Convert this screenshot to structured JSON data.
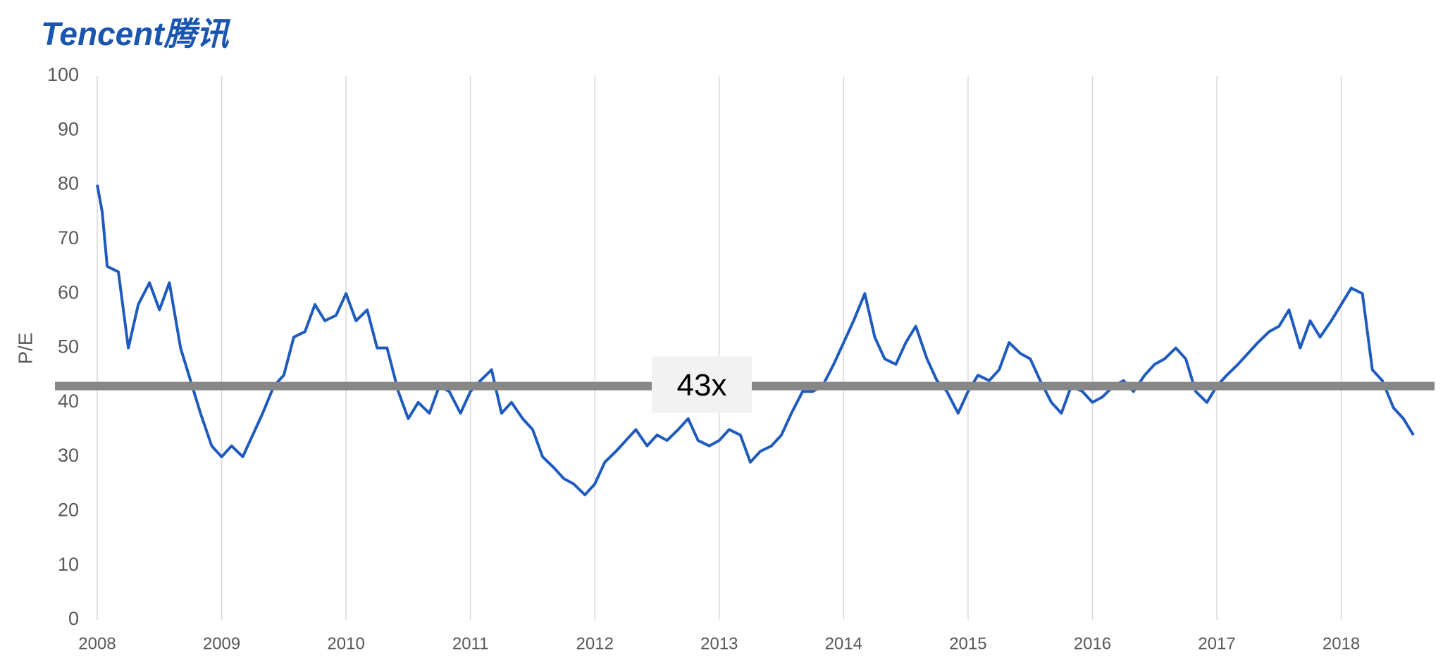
{
  "chart_data": {
    "type": "line",
    "logo": "Tencent腾讯",
    "y_label": "P/E",
    "x": [
      2008.0,
      2008.04,
      2008.08,
      2008.17,
      2008.25,
      2008.33,
      2008.42,
      2008.5,
      2008.58,
      2008.67,
      2008.75,
      2008.83,
      2008.92,
      2009.0,
      2009.08,
      2009.17,
      2009.25,
      2009.33,
      2009.42,
      2009.5,
      2009.58,
      2009.67,
      2009.75,
      2009.83,
      2009.92,
      2010.0,
      2010.08,
      2010.17,
      2010.25,
      2010.33,
      2010.42,
      2010.5,
      2010.58,
      2010.67,
      2010.75,
      2010.83,
      2010.92,
      2011.0,
      2011.08,
      2011.17,
      2011.25,
      2011.33,
      2011.42,
      2011.5,
      2011.58,
      2011.67,
      2011.75,
      2011.83,
      2011.92,
      2012.0,
      2012.08,
      2012.17,
      2012.25,
      2012.33,
      2012.42,
      2012.5,
      2012.58,
      2012.67,
      2012.75,
      2012.83,
      2012.92,
      2013.0,
      2013.08,
      2013.17,
      2013.25,
      2013.33,
      2013.42,
      2013.5,
      2013.58,
      2013.67,
      2013.75,
      2013.83,
      2013.92,
      2014.0,
      2014.08,
      2014.17,
      2014.25,
      2014.33,
      2014.42,
      2014.5,
      2014.58,
      2014.67,
      2014.75,
      2014.83,
      2014.92,
      2015.0,
      2015.08,
      2015.17,
      2015.25,
      2015.33,
      2015.42,
      2015.5,
      2015.58,
      2015.67,
      2015.75,
      2015.83,
      2015.92,
      2016.0,
      2016.08,
      2016.17,
      2016.25,
      2016.33,
      2016.42,
      2016.5,
      2016.58,
      2016.67,
      2016.75,
      2016.83,
      2016.92,
      2017.0,
      2017.08,
      2017.17,
      2017.25,
      2017.33,
      2017.42,
      2017.5,
      2017.58,
      2017.67,
      2017.75,
      2017.83,
      2017.92,
      2018.0,
      2018.08,
      2018.17,
      2018.25,
      2018.33,
      2018.42,
      2018.5,
      2018.58
    ],
    "series": [
      {
        "color": "#1f5bbf",
        "values": [
          80,
          75,
          65,
          64,
          50,
          58,
          62,
          57,
          62,
          50,
          44,
          38,
          32,
          30,
          32,
          30,
          34,
          38,
          43,
          45,
          52,
          53,
          58,
          55,
          56,
          60,
          55,
          57,
          50,
          50,
          42,
          37,
          40,
          38,
          43,
          42,
          38,
          42,
          44,
          46,
          38,
          40,
          37,
          35,
          30,
          28,
          26,
          25,
          23,
          25,
          29,
          31,
          33,
          35,
          32,
          34,
          33,
          35,
          37,
          33,
          32,
          33,
          35,
          34,
          29,
          31,
          32,
          34,
          38,
          42,
          42,
          43,
          47,
          51,
          55,
          60,
          52,
          48,
          47,
          51,
          54,
          48,
          44,
          42,
          38,
          42,
          45,
          44,
          46,
          51,
          49,
          48,
          44,
          40,
          38,
          43,
          42,
          40,
          41,
          43,
          44,
          42,
          45,
          47,
          48,
          50,
          48,
          42,
          40,
          43,
          45,
          47,
          49,
          51,
          53,
          54,
          57,
          50,
          55,
          52,
          55,
          58,
          61,
          60,
          46,
          44,
          39,
          37,
          34
        ]
      }
    ],
    "reference_line": {
      "value": 43,
      "label": "43x",
      "color": "#878787"
    },
    "xlim": [
      2008,
      2018.75
    ],
    "xticks": [
      2008,
      2009,
      2010,
      2011,
      2012,
      2013,
      2014,
      2015,
      2016,
      2017,
      2018
    ],
    "ylim": [
      0,
      100
    ],
    "yticks": [
      0,
      10,
      20,
      30,
      40,
      50,
      60,
      70,
      80,
      90,
      100
    ],
    "grid": "x"
  }
}
